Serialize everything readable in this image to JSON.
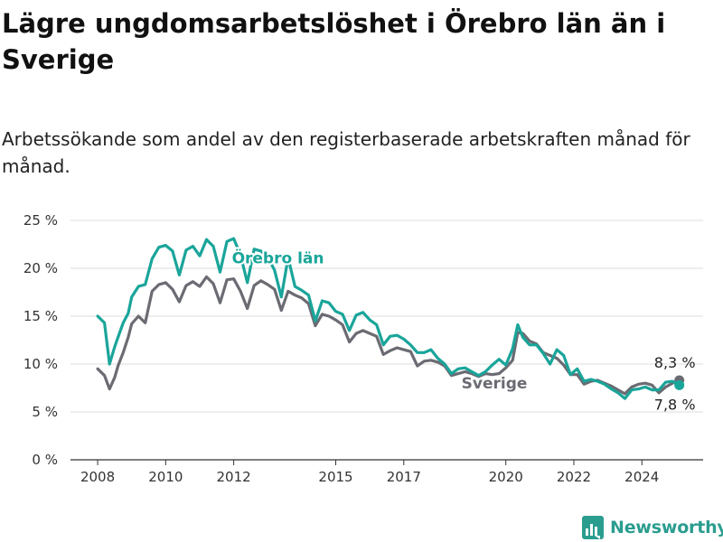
{
  "header": {
    "title": "Lägre ungdomsarbetslöshet i Örebro län än i Sverige",
    "subtitle": "Arbetssökande som andel av den registerbaserade arbetskraften månad för månad."
  },
  "brand": {
    "name": "Newsworthy",
    "icon": "bar-chart-logo-icon",
    "color": "#2a9d8f"
  },
  "chart_data": {
    "type": "line",
    "title": "Lägre ungdomsarbetslöshet i Örebro län än i Sverige",
    "subtitle": "Arbetssökande som andel av den registerbaserade arbetskraften månad för månad.",
    "ylim": [
      0,
      25
    ],
    "xlim": [
      2007.6,
      2025.8
    ],
    "yticks": [
      0,
      5,
      10,
      15,
      20,
      25
    ],
    "ytick_labels": [
      "0 %",
      "5 %",
      "10 %",
      "15 %",
      "20 %",
      "25 %"
    ],
    "xticks": [
      2008,
      2010,
      2012,
      2015,
      2017,
      2020,
      2022,
      2024
    ],
    "xtick_labels": [
      "2008",
      "2010",
      "2012",
      "2015",
      "2017",
      "2020",
      "2022",
      "2024"
    ],
    "grid": "horizontal",
    "legend": "inline labels",
    "series": [
      {
        "name": "Sverige",
        "color": "#6b6b73",
        "end_label": "8,3 %",
        "x": [
          2008.0,
          2008.2,
          2008.35,
          2008.5,
          2008.6,
          2008.75,
          2008.9,
          2009.0,
          2009.2,
          2009.4,
          2009.6,
          2009.8,
          2010.0,
          2010.2,
          2010.4,
          2010.6,
          2010.8,
          2011.0,
          2011.2,
          2011.4,
          2011.6,
          2011.8,
          2012.0,
          2012.2,
          2012.4,
          2012.6,
          2012.8,
          2013.0,
          2013.2,
          2013.4,
          2013.6,
          2013.8,
          2014.0,
          2014.2,
          2014.4,
          2014.6,
          2014.8,
          2015.0,
          2015.2,
          2015.4,
          2015.6,
          2015.8,
          2016.0,
          2016.2,
          2016.4,
          2016.6,
          2016.8,
          2017.0,
          2017.2,
          2017.4,
          2017.6,
          2017.8,
          2018.0,
          2018.2,
          2018.4,
          2018.6,
          2018.8,
          2019.0,
          2019.2,
          2019.4,
          2019.6,
          2019.8,
          2020.0,
          2020.2,
          2020.35,
          2020.5,
          2020.7,
          2020.9,
          2021.1,
          2021.3,
          2021.5,
          2021.7,
          2021.9,
          2022.1,
          2022.3,
          2022.5,
          2022.7,
          2022.9,
          2023.1,
          2023.3,
          2023.5,
          2023.7,
          2023.9,
          2024.1,
          2024.3,
          2024.5,
          2024.7,
          2024.9,
          2025.1
        ],
        "values": [
          9.5,
          8.8,
          7.4,
          8.6,
          9.8,
          11.2,
          12.8,
          14.2,
          15.0,
          14.3,
          17.6,
          18.3,
          18.5,
          17.8,
          16.5,
          18.2,
          18.6,
          18.1,
          19.1,
          18.4,
          16.4,
          18.8,
          18.9,
          17.6,
          15.8,
          18.2,
          18.7,
          18.3,
          17.8,
          15.6,
          17.6,
          17.2,
          16.9,
          16.3,
          14.0,
          15.2,
          15.0,
          14.6,
          14.1,
          12.3,
          13.2,
          13.5,
          13.2,
          12.9,
          11.0,
          11.4,
          11.7,
          11.5,
          11.3,
          9.8,
          10.3,
          10.4,
          10.2,
          9.8,
          8.8,
          9.0,
          9.2,
          9.0,
          8.7,
          9.0,
          8.9,
          9.0,
          9.6,
          10.4,
          13.3,
          13.2,
          12.4,
          12.1,
          11.2,
          10.9,
          10.6,
          9.9,
          8.9,
          8.9,
          7.9,
          8.2,
          8.3,
          8.0,
          7.7,
          7.3,
          6.9,
          7.6,
          7.9,
          8.0,
          7.8,
          7.0,
          7.6,
          8.0,
          8.3
        ]
      },
      {
        "name": "Örebro län",
        "color": "#1aa59a",
        "end_label": "7,8 %",
        "x": [
          2008.0,
          2008.2,
          2008.35,
          2008.5,
          2008.6,
          2008.75,
          2008.9,
          2009.0,
          2009.2,
          2009.4,
          2009.6,
          2009.8,
          2010.0,
          2010.2,
          2010.4,
          2010.6,
          2010.8,
          2011.0,
          2011.2,
          2011.4,
          2011.6,
          2011.8,
          2012.0,
          2012.2,
          2012.4,
          2012.6,
          2012.8,
          2013.0,
          2013.2,
          2013.4,
          2013.6,
          2013.8,
          2014.0,
          2014.2,
          2014.4,
          2014.6,
          2014.8,
          2015.0,
          2015.2,
          2015.4,
          2015.6,
          2015.8,
          2016.0,
          2016.2,
          2016.4,
          2016.6,
          2016.8,
          2017.0,
          2017.2,
          2017.4,
          2017.6,
          2017.8,
          2018.0,
          2018.2,
          2018.4,
          2018.6,
          2018.8,
          2019.0,
          2019.2,
          2019.4,
          2019.6,
          2019.8,
          2020.0,
          2020.2,
          2020.35,
          2020.5,
          2020.7,
          2020.9,
          2021.1,
          2021.3,
          2021.5,
          2021.7,
          2021.9,
          2022.1,
          2022.3,
          2022.5,
          2022.7,
          2022.9,
          2023.1,
          2023.3,
          2023.5,
          2023.7,
          2023.9,
          2024.1,
          2024.3,
          2024.5,
          2024.7,
          2024.9,
          2025.1
        ],
        "values": [
          15.0,
          14.3,
          10.0,
          11.8,
          12.8,
          14.3,
          15.3,
          17.0,
          18.1,
          18.3,
          21.0,
          22.2,
          22.4,
          21.8,
          19.3,
          21.9,
          22.3,
          21.3,
          23.0,
          22.3,
          19.6,
          22.8,
          23.1,
          21.4,
          18.5,
          22.0,
          21.8,
          21.2,
          19.8,
          17.0,
          21.1,
          18.1,
          17.7,
          17.2,
          14.5,
          16.6,
          16.4,
          15.5,
          15.2,
          13.5,
          15.1,
          15.4,
          14.6,
          14.1,
          12.0,
          12.9,
          13.0,
          12.6,
          12.0,
          11.2,
          11.2,
          11.5,
          10.6,
          10.0,
          9.0,
          9.5,
          9.6,
          9.2,
          8.8,
          9.2,
          9.9,
          10.5,
          9.9,
          11.6,
          14.1,
          12.8,
          12.0,
          12.0,
          11.1,
          10.0,
          11.5,
          10.9,
          8.9,
          9.5,
          8.2,
          8.4,
          8.2,
          7.9,
          7.4,
          7.0,
          6.4,
          7.3,
          7.4,
          7.6,
          7.3,
          7.3,
          8.1,
          8.2,
          7.8
        ]
      }
    ]
  }
}
